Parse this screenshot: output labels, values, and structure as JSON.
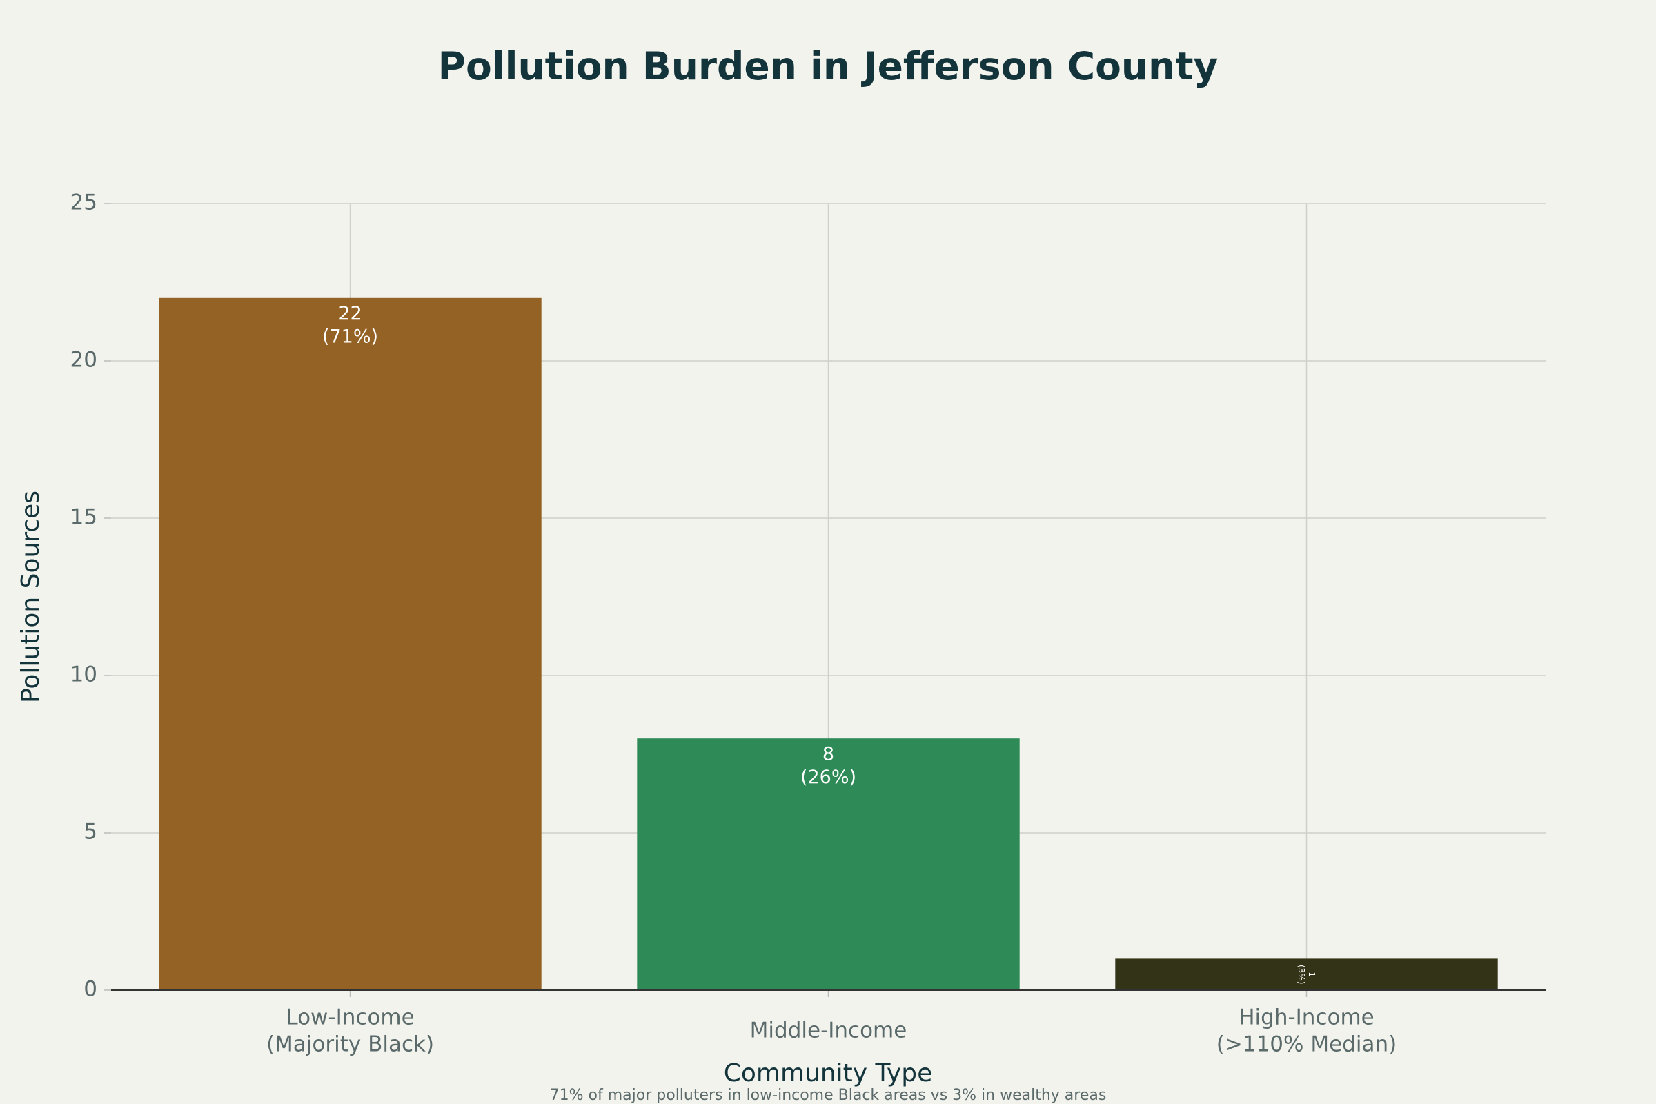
{
  "chart_data": {
    "type": "bar",
    "title": "Pollution Burden in Jefferson County",
    "categories": [
      "Low-Income\n(Majority Black)",
      "Middle-Income",
      "High-Income\n(>110% Median)"
    ],
    "values": [
      22,
      8,
      1
    ],
    "value_labels": [
      "22\n(71%)",
      "8\n(26%)",
      "1\n(3%)"
    ],
    "colors": [
      "#956226",
      "#2e8b57",
      "#333318"
    ],
    "x_label": "Community Type",
    "y_label": "Pollution Sources",
    "annotation": "71% of major polluters in low-income Black areas vs 3% in wealthy areas",
    "ylim": [
      0,
      25
    ],
    "yticks": [
      0,
      5,
      10,
      15,
      20,
      25
    ],
    "grid": true
  }
}
